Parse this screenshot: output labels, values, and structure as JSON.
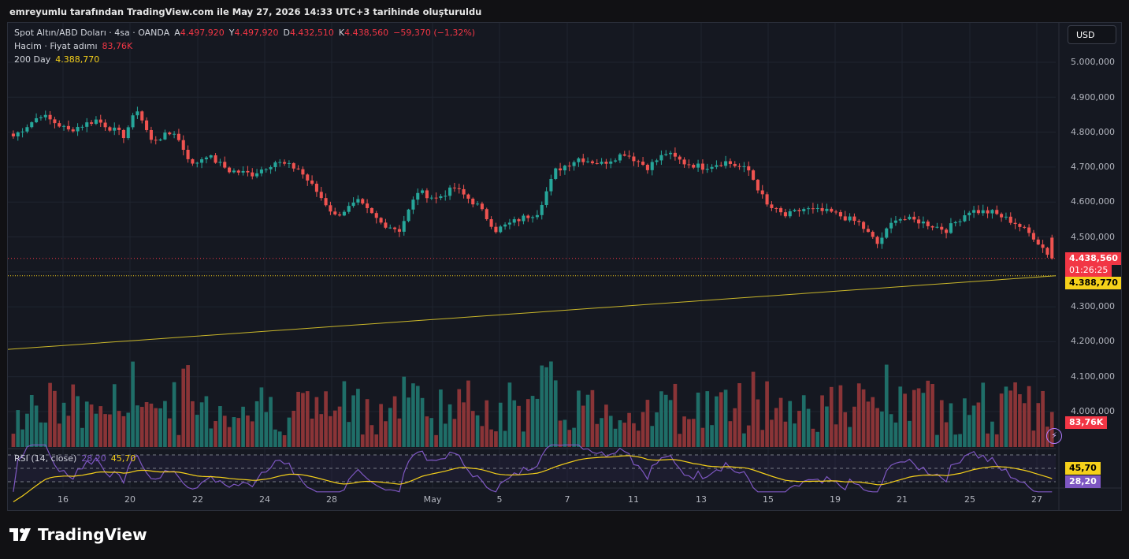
{
  "header": {
    "credit": "emreyumlu tarafından TradingView.com ile May 27, 2026 14:33 UTC+3 tarihinde oluşturuldu"
  },
  "legend": {
    "symbol": "Spot Altın/ABD Doları · 4sa · OANDA",
    "o_label": "A",
    "o": "4.497,920",
    "h_label": "Y",
    "h": "4.497,920",
    "l_label": "D",
    "l": "4.432,510",
    "c_label": "K",
    "c": "4.438,560",
    "change": "−59,370 (−1,32%)",
    "volume_label": "Hacim · Fiyat adımı",
    "volume_value": "83,76K",
    "ma_label": "200 Day",
    "ma_value": "4.388,770",
    "rsi_label": "RSI (14, close)",
    "rsi_value": "28,20",
    "rsi_ma": "45,70"
  },
  "currency_button": "USD",
  "price_axis": [
    "5.000,000",
    "4.900,000",
    "4.800,000",
    "4.700,000",
    "4.600,000",
    "4.500,000",
    "4.300,000",
    "4.200,000",
    "4.100,000",
    "4.000,000"
  ],
  "tags": {
    "last_price": "4.438,560",
    "countdown": "01:26:25",
    "ma": "4.388,770",
    "volume": "83,76K",
    "rsi_ma": "45,70",
    "rsi": "28,20"
  },
  "date_axis": [
    "16",
    "20",
    "22",
    "24",
    "28",
    "May",
    "5",
    "7",
    "11",
    "13",
    "15",
    "19",
    "21",
    "25",
    "27"
  ],
  "footer": {
    "brand": "TradingView"
  },
  "colors": {
    "up": "#26a69a",
    "down": "#ef5350",
    "ma": "#f5d01a",
    "rsi": "#7e57c2",
    "background": "#151821"
  },
  "chart_data": {
    "type": "candlestick",
    "symbol": "Spot Altın/ABD Doları",
    "timeframe": "4sa",
    "y_range": [
      4000,
      5000
    ],
    "close_path": [
      [
        0,
        4788
      ],
      [
        6,
        4850
      ],
      [
        12,
        4805
      ],
      [
        18,
        4835
      ],
      [
        24,
        4790
      ],
      [
        27,
        4865
      ],
      [
        30,
        4775
      ],
      [
        35,
        4800
      ],
      [
        39,
        4705
      ],
      [
        42,
        4735
      ],
      [
        47,
        4690
      ],
      [
        52,
        4680
      ],
      [
        57,
        4715
      ],
      [
        62,
        4695
      ],
      [
        66,
        4630
      ],
      [
        70,
        4560
      ],
      [
        75,
        4600
      ],
      [
        80,
        4540
      ],
      [
        84,
        4520
      ],
      [
        88,
        4630
      ],
      [
        92,
        4610
      ],
      [
        96,
        4640
      ],
      [
        101,
        4590
      ],
      [
        105,
        4520
      ],
      [
        110,
        4550
      ],
      [
        114,
        4570
      ],
      [
        118,
        4690
      ],
      [
        123,
        4725
      ],
      [
        128,
        4710
      ],
      [
        133,
        4740
      ],
      [
        138,
        4700
      ],
      [
        142,
        4740
      ],
      [
        146,
        4712
      ],
      [
        150,
        4700
      ],
      [
        155,
        4715
      ],
      [
        160,
        4690
      ],
      [
        164,
        4590
      ],
      [
        168,
        4560
      ],
      [
        172,
        4580
      ],
      [
        178,
        4570
      ],
      [
        184,
        4540
      ],
      [
        188,
        4480
      ],
      [
        192,
        4555
      ],
      [
        197,
        4545
      ],
      [
        203,
        4520
      ],
      [
        208,
        4575
      ],
      [
        213,
        4570
      ],
      [
        218,
        4540
      ],
      [
        222,
        4500
      ],
      [
        226,
        4438
      ]
    ],
    "ma200": {
      "name": "200 Day",
      "start": 4178,
      "end": 4388.77
    },
    "volume_last": 83760,
    "rsi": {
      "value": 28.2,
      "ma": 45.7,
      "levels": [
        70,
        50,
        30
      ]
    }
  }
}
